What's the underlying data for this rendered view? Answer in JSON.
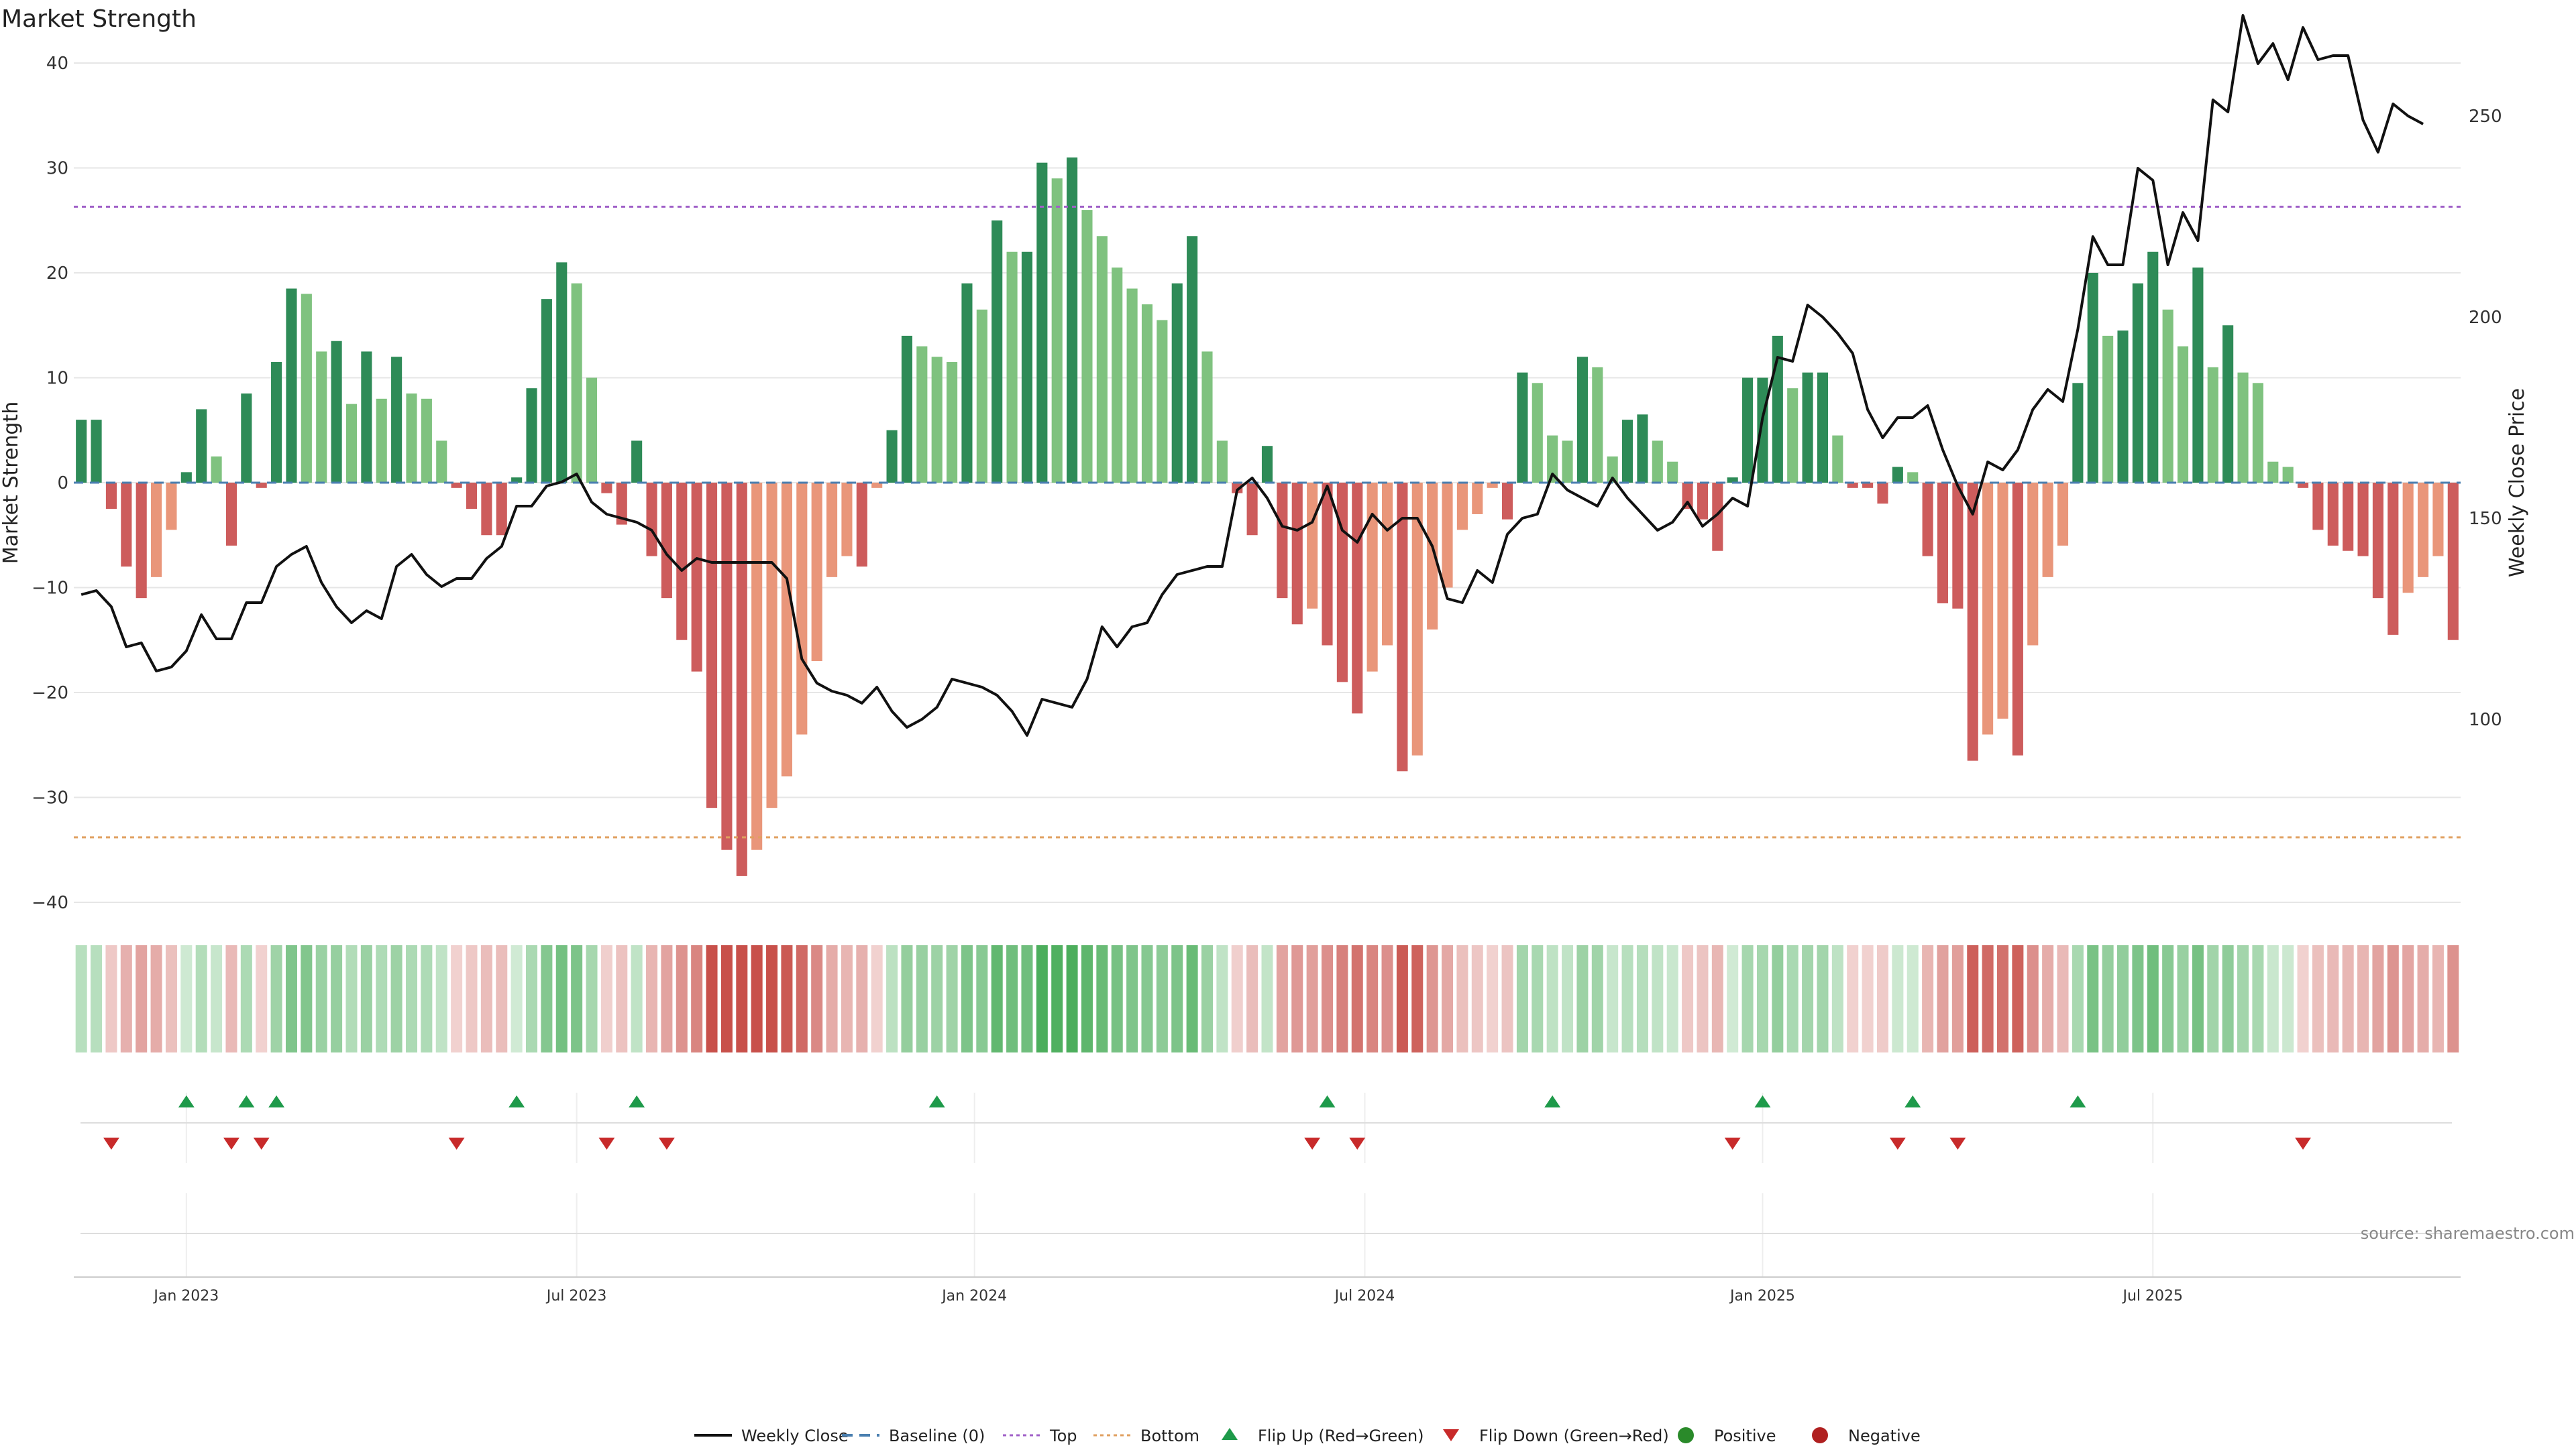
{
  "chart_data": {
    "type": "bar",
    "title": "Market Strength",
    "ylabel": "Market Strength",
    "y2label": "Weekly Close Price",
    "ylim": [
      -40,
      40
    ],
    "yticks": [
      40,
      30,
      20,
      10,
      0,
      -10,
      -20,
      -30,
      -40
    ],
    "y2lim": [
      80,
      270
    ],
    "y2ticks": [
      250,
      200,
      150,
      100
    ],
    "top_line": 26.3,
    "bottom_line": -33.8,
    "xticks": [
      {
        "label": "Jan 2023",
        "week": 7
      },
      {
        "label": "Jul 2023",
        "week": 33
      },
      {
        "label": "Jan 2024",
        "week": 59.5
      },
      {
        "label": "Jul 2024",
        "week": 85.5
      },
      {
        "label": "Jan 2025",
        "week": 112
      },
      {
        "label": "Jul 2025",
        "week": 138
      }
    ],
    "strength": [
      6,
      6,
      -2.5,
      -8,
      -11,
      -9,
      -4.5,
      1,
      7,
      2.5,
      -6,
      8.5,
      -0.5,
      11.5,
      18.5,
      18,
      12.5,
      13.5,
      7.5,
      12.5,
      8,
      12,
      8.5,
      8,
      4,
      -0.5,
      -2.5,
      -5,
      -5,
      0.5,
      9,
      17.5,
      21,
      19,
      10,
      -1,
      -4,
      4,
      -7,
      -11,
      -15,
      -18,
      -31,
      -35,
      -37.5,
      -35,
      -31,
      -28,
      -24,
      -17,
      -9,
      -7,
      -8,
      -0.5,
      5,
      14,
      13,
      12,
      11.5,
      19,
      16.5,
      25,
      22,
      22,
      30.5,
      29,
      31,
      26,
      23.5,
      20.5,
      18.5,
      17,
      15.5,
      19,
      23.5,
      12.5,
      4,
      -1,
      -5,
      3.5,
      -11,
      -13.5,
      -12,
      -15.5,
      -19,
      -22,
      -18,
      -15.5,
      -27.5,
      -26,
      -14,
      -10,
      -4.5,
      -3,
      -0.5,
      -3.5,
      10.5,
      9.5,
      4.5,
      4,
      12,
      11,
      2.5,
      6,
      6.5,
      4,
      2,
      -2.5,
      -3.5,
      -6.5,
      0.5,
      10,
      10,
      14,
      9,
      10.5,
      10.5,
      4.5,
      -0.5,
      -0.5,
      -2,
      1.5,
      1,
      -7,
      -11.5,
      -12,
      -26.5,
      -24,
      -22.5,
      -26,
      -15.5,
      -9,
      -6,
      9.5,
      20,
      14,
      14.5,
      19,
      22,
      16.5,
      13,
      20.5,
      11,
      15,
      10.5,
      9.5,
      2,
      1.5,
      -0.5,
      -4.5,
      -6,
      -6.5,
      -7,
      -11,
      -14.5,
      -10.5,
      -9,
      -7,
      -15
    ],
    "flip_up_weeks": [
      7,
      11,
      13,
      29,
      37,
      57,
      83,
      98,
      112,
      122,
      133
    ],
    "flip_down_weeks": [
      2,
      10,
      12,
      25,
      35,
      39,
      82,
      85,
      110,
      121,
      125,
      148
    ],
    "close": [
      [
        0,
        131
      ],
      [
        1,
        132
      ],
      [
        2,
        128
      ],
      [
        3,
        118
      ],
      [
        4,
        119
      ],
      [
        5,
        112
      ],
      [
        6,
        113
      ],
      [
        7,
        117
      ],
      [
        8,
        126
      ],
      [
        9,
        120
      ],
      [
        10,
        120
      ],
      [
        11,
        129
      ],
      [
        12,
        129
      ],
      [
        13,
        138
      ],
      [
        14,
        141
      ],
      [
        15,
        143
      ],
      [
        16,
        134
      ],
      [
        17,
        128
      ],
      [
        18,
        124
      ],
      [
        19,
        127
      ],
      [
        20,
        125
      ],
      [
        21,
        138
      ],
      [
        22,
        141
      ],
      [
        23,
        136
      ],
      [
        24,
        133
      ],
      [
        25,
        135
      ],
      [
        26,
        135
      ],
      [
        27,
        140
      ],
      [
        28,
        143
      ],
      [
        29,
        153
      ],
      [
        30,
        153
      ],
      [
        31,
        158
      ],
      [
        32,
        159
      ],
      [
        33,
        161
      ],
      [
        34,
        154
      ],
      [
        35,
        151
      ],
      [
        36,
        150
      ],
      [
        37,
        149
      ],
      [
        38,
        147
      ],
      [
        39,
        141
      ],
      [
        40,
        137
      ],
      [
        41,
        140
      ],
      [
        42,
        139
      ],
      [
        43,
        139
      ],
      [
        44,
        139
      ],
      [
        45,
        139
      ],
      [
        46,
        139
      ],
      [
        47,
        135
      ],
      [
        48,
        115
      ],
      [
        49,
        109
      ],
      [
        50,
        107
      ],
      [
        51,
        106
      ],
      [
        52,
        104
      ],
      [
        53,
        108
      ],
      [
        54,
        102
      ],
      [
        55,
        98
      ],
      [
        56,
        100
      ],
      [
        57,
        103
      ],
      [
        58,
        110
      ],
      [
        59,
        109
      ],
      [
        60,
        108
      ],
      [
        61,
        106
      ],
      [
        62,
        102
      ],
      [
        63,
        96
      ],
      [
        64,
        105
      ],
      [
        65,
        104
      ],
      [
        66,
        103
      ],
      [
        67,
        110
      ],
      [
        68,
        123
      ],
      [
        69,
        118
      ],
      [
        70,
        123
      ],
      [
        71,
        124
      ],
      [
        72,
        131
      ],
      [
        73,
        136
      ],
      [
        74,
        137
      ],
      [
        75,
        138
      ],
      [
        76,
        138
      ],
      [
        77,
        157
      ],
      [
        78,
        160
      ],
      [
        79,
        155
      ],
      [
        80,
        148
      ],
      [
        81,
        147
      ],
      [
        82,
        149
      ],
      [
        83,
        158
      ],
      [
        84,
        147
      ],
      [
        85,
        144
      ],
      [
        86,
        151
      ],
      [
        87,
        147
      ],
      [
        88,
        150
      ],
      [
        89,
        150
      ],
      [
        90,
        143
      ],
      [
        91,
        130
      ],
      [
        92,
        129
      ],
      [
        93,
        137
      ],
      [
        94,
        134
      ],
      [
        95,
        146
      ],
      [
        96,
        150
      ],
      [
        97,
        151
      ],
      [
        98,
        161
      ],
      [
        99,
        157
      ],
      [
        100,
        155
      ],
      [
        101,
        153
      ],
      [
        102,
        160
      ],
      [
        103,
        155
      ],
      [
        104,
        151
      ],
      [
        105,
        147
      ],
      [
        106,
        149
      ],
      [
        107,
        154
      ],
      [
        108,
        148
      ],
      [
        109,
        151
      ],
      [
        110,
        155
      ],
      [
        111,
        153
      ],
      [
        112,
        175
      ],
      [
        113,
        190
      ],
      [
        114,
        189
      ],
      [
        115,
        203
      ],
      [
        116,
        200
      ],
      [
        117,
        196
      ],
      [
        118,
        191
      ],
      [
        119,
        177
      ],
      [
        120,
        170
      ],
      [
        121,
        175
      ],
      [
        122,
        175
      ],
      [
        123,
        178
      ],
      [
        124,
        167
      ],
      [
        125,
        158
      ],
      [
        126,
        151
      ],
      [
        127,
        164
      ],
      [
        128,
        162
      ],
      [
        129,
        167
      ],
      [
        130,
        177
      ],
      [
        131,
        182
      ],
      [
        132,
        179
      ],
      [
        133,
        197
      ],
      [
        134,
        220
      ],
      [
        135,
        213
      ],
      [
        136,
        213
      ],
      [
        137,
        237
      ],
      [
        138,
        234
      ],
      [
        139,
        213
      ],
      [
        140,
        226
      ],
      [
        141,
        219
      ],
      [
        142,
        254
      ],
      [
        143,
        251
      ],
      [
        144,
        275
      ],
      [
        145,
        263
      ],
      [
        146,
        268
      ],
      [
        147,
        259
      ],
      [
        148,
        272
      ],
      [
        149,
        264
      ],
      [
        150,
        265
      ],
      [
        151,
        265
      ],
      [
        152,
        249
      ],
      [
        153,
        241
      ],
      [
        154,
        253
      ],
      [
        155,
        250
      ],
      [
        156,
        248
      ]
    ],
    "legend": [
      {
        "label": "Weekly Close",
        "kind": "line",
        "color": "#111111"
      },
      {
        "label": "Baseline (0)",
        "kind": "dash",
        "color": "#4a7fb0"
      },
      {
        "label": "Top",
        "kind": "dot",
        "color": "#a060c8"
      },
      {
        "label": "Bottom",
        "kind": "dot",
        "color": "#e0a060"
      },
      {
        "label": "Flip Up (Red→Green)",
        "kind": "up",
        "color": "#1e9a4a"
      },
      {
        "label": "Flip Down (Green→Red)",
        "kind": "down",
        "color": "#c82a2a"
      },
      {
        "label": "Positive",
        "kind": "circle",
        "color": "#2a8a2a"
      },
      {
        "label": "Negative",
        "kind": "circle",
        "color": "#b02020"
      }
    ],
    "source": "source: sharemaestro.com"
  },
  "colors": {
    "pos_strong": "#2e8b57",
    "pos_light": "#7fc27f",
    "neg_strong": "#cd5c5c",
    "neg_light": "#e9967a",
    "grid": "#e6e6e6"
  }
}
